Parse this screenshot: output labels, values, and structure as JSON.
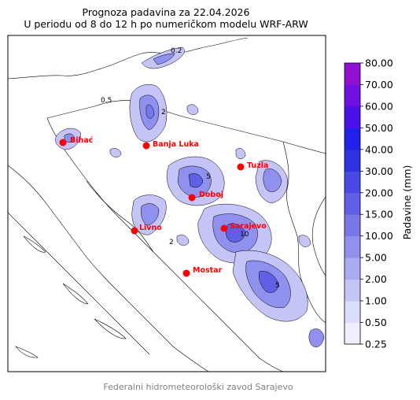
{
  "title_line1": "Prognoza padavina za 22.04.2026",
  "title_line2": "U periodu od 8 do 12 h po numeričkom modelu WRF-ARW",
  "footer": "Federalni hidrometeorološki zavod Sarajevo",
  "colorbar": {
    "label": "Padavine (mm)",
    "ticks": [
      "0.25",
      "0.50",
      "1.00",
      "2.00",
      "5.00",
      "10.00",
      "15.00",
      "20.00",
      "30.00",
      "40.00",
      "50.00",
      "60.00",
      "70.00",
      "80.00"
    ],
    "colors": [
      "#eeeeff",
      "#dcdcfb",
      "#c4c4f6",
      "#aaaaf2",
      "#9090ee",
      "#7878ea",
      "#6060e6",
      "#4848e2",
      "#3030e0",
      "#2020e8",
      "#4a10e8",
      "#7010e0",
      "#9010d0",
      "#b010b8"
    ]
  },
  "cities": [
    {
      "name": "Bihać"
    },
    {
      "name": "Banja Luka"
    },
    {
      "name": "Tuzla"
    },
    {
      "name": "Doboj"
    },
    {
      "name": "Livno"
    },
    {
      "name": "Sarajevo"
    },
    {
      "name": "Mostar"
    }
  ],
  "contour_labels": [
    "0.2",
    "0.5",
    "2",
    "5",
    "10",
    "2",
    "5"
  ],
  "colors": {
    "city_marker": "#ff0000",
    "rain_light": "#c4c4f6",
    "rain_mid": "#9090ee",
    "rain_heavy": "#6060e6"
  }
}
